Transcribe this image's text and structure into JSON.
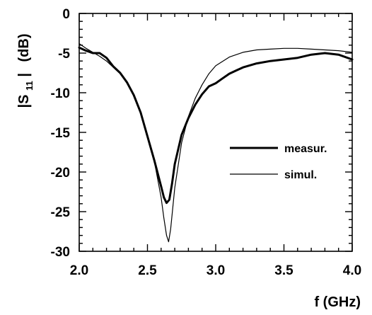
{
  "chart_data": {
    "type": "line",
    "xlabel": "f (GHz)",
    "ylabel": {
      "prefix": "|S",
      "sub": "11",
      "suffix": "|",
      "unit": "(dB)"
    },
    "xlim": [
      2.0,
      4.0
    ],
    "ylim": [
      -30,
      0
    ],
    "xticks": [
      2.0,
      2.5,
      3.0,
      3.5,
      4.0
    ],
    "xtick_labels": [
      "2.0",
      "2.5",
      "3.0",
      "3.5",
      "4.0"
    ],
    "yticks": [
      0,
      -5,
      -10,
      -15,
      -20,
      -25,
      -30
    ],
    "ytick_labels": [
      "0",
      "-5",
      "-10",
      "-15",
      "-20",
      "-25",
      "-30"
    ],
    "grid": false,
    "legend_position": "right",
    "series": [
      {
        "name": "measur.",
        "style": "thick",
        "color": "#000000",
        "x": [
          2.0,
          2.05,
          2.1,
          2.15,
          2.2,
          2.25,
          2.3,
          2.35,
          2.4,
          2.45,
          2.5,
          2.55,
          2.6,
          2.62,
          2.64,
          2.66,
          2.68,
          2.7,
          2.75,
          2.8,
          2.85,
          2.9,
          2.95,
          3.0,
          3.05,
          3.1,
          3.15,
          3.2,
          3.3,
          3.4,
          3.5,
          3.6,
          3.7,
          3.8,
          3.9,
          4.0
        ],
        "y": [
          -4.3,
          -4.7,
          -5.0,
          -5.0,
          -5.6,
          -6.7,
          -7.5,
          -8.7,
          -10.3,
          -12.5,
          -15.5,
          -18.5,
          -21.8,
          -23.2,
          -23.9,
          -23.5,
          -21.5,
          -19.0,
          -15.3,
          -13.2,
          -11.5,
          -10.2,
          -9.2,
          -8.8,
          -8.2,
          -7.6,
          -7.2,
          -6.8,
          -6.3,
          -6.0,
          -5.8,
          -5.6,
          -5.2,
          -5.0,
          -5.2,
          -5.8
        ]
      },
      {
        "name": "simul.",
        "style": "thin",
        "color": "#000000",
        "x": [
          2.0,
          2.05,
          2.1,
          2.15,
          2.2,
          2.25,
          2.3,
          2.35,
          2.4,
          2.45,
          2.5,
          2.55,
          2.6,
          2.62,
          2.64,
          2.655,
          2.67,
          2.7,
          2.75,
          2.8,
          2.85,
          2.9,
          2.95,
          3.0,
          3.1,
          3.2,
          3.3,
          3.4,
          3.5,
          3.6,
          3.7,
          3.8,
          3.9,
          4.0
        ],
        "y": [
          -3.8,
          -4.4,
          -4.9,
          -5.4,
          -6.0,
          -6.8,
          -7.6,
          -8.8,
          -10.3,
          -12.5,
          -15.3,
          -18.6,
          -23.2,
          -25.8,
          -28.0,
          -28.8,
          -27.2,
          -22.0,
          -16.3,
          -13.0,
          -10.7,
          -9.0,
          -7.6,
          -6.6,
          -5.5,
          -4.9,
          -4.6,
          -4.5,
          -4.4,
          -4.4,
          -4.5,
          -4.6,
          -4.7,
          -4.9
        ]
      }
    ]
  },
  "colors": {
    "line": "#000000",
    "background": "#ffffff"
  }
}
